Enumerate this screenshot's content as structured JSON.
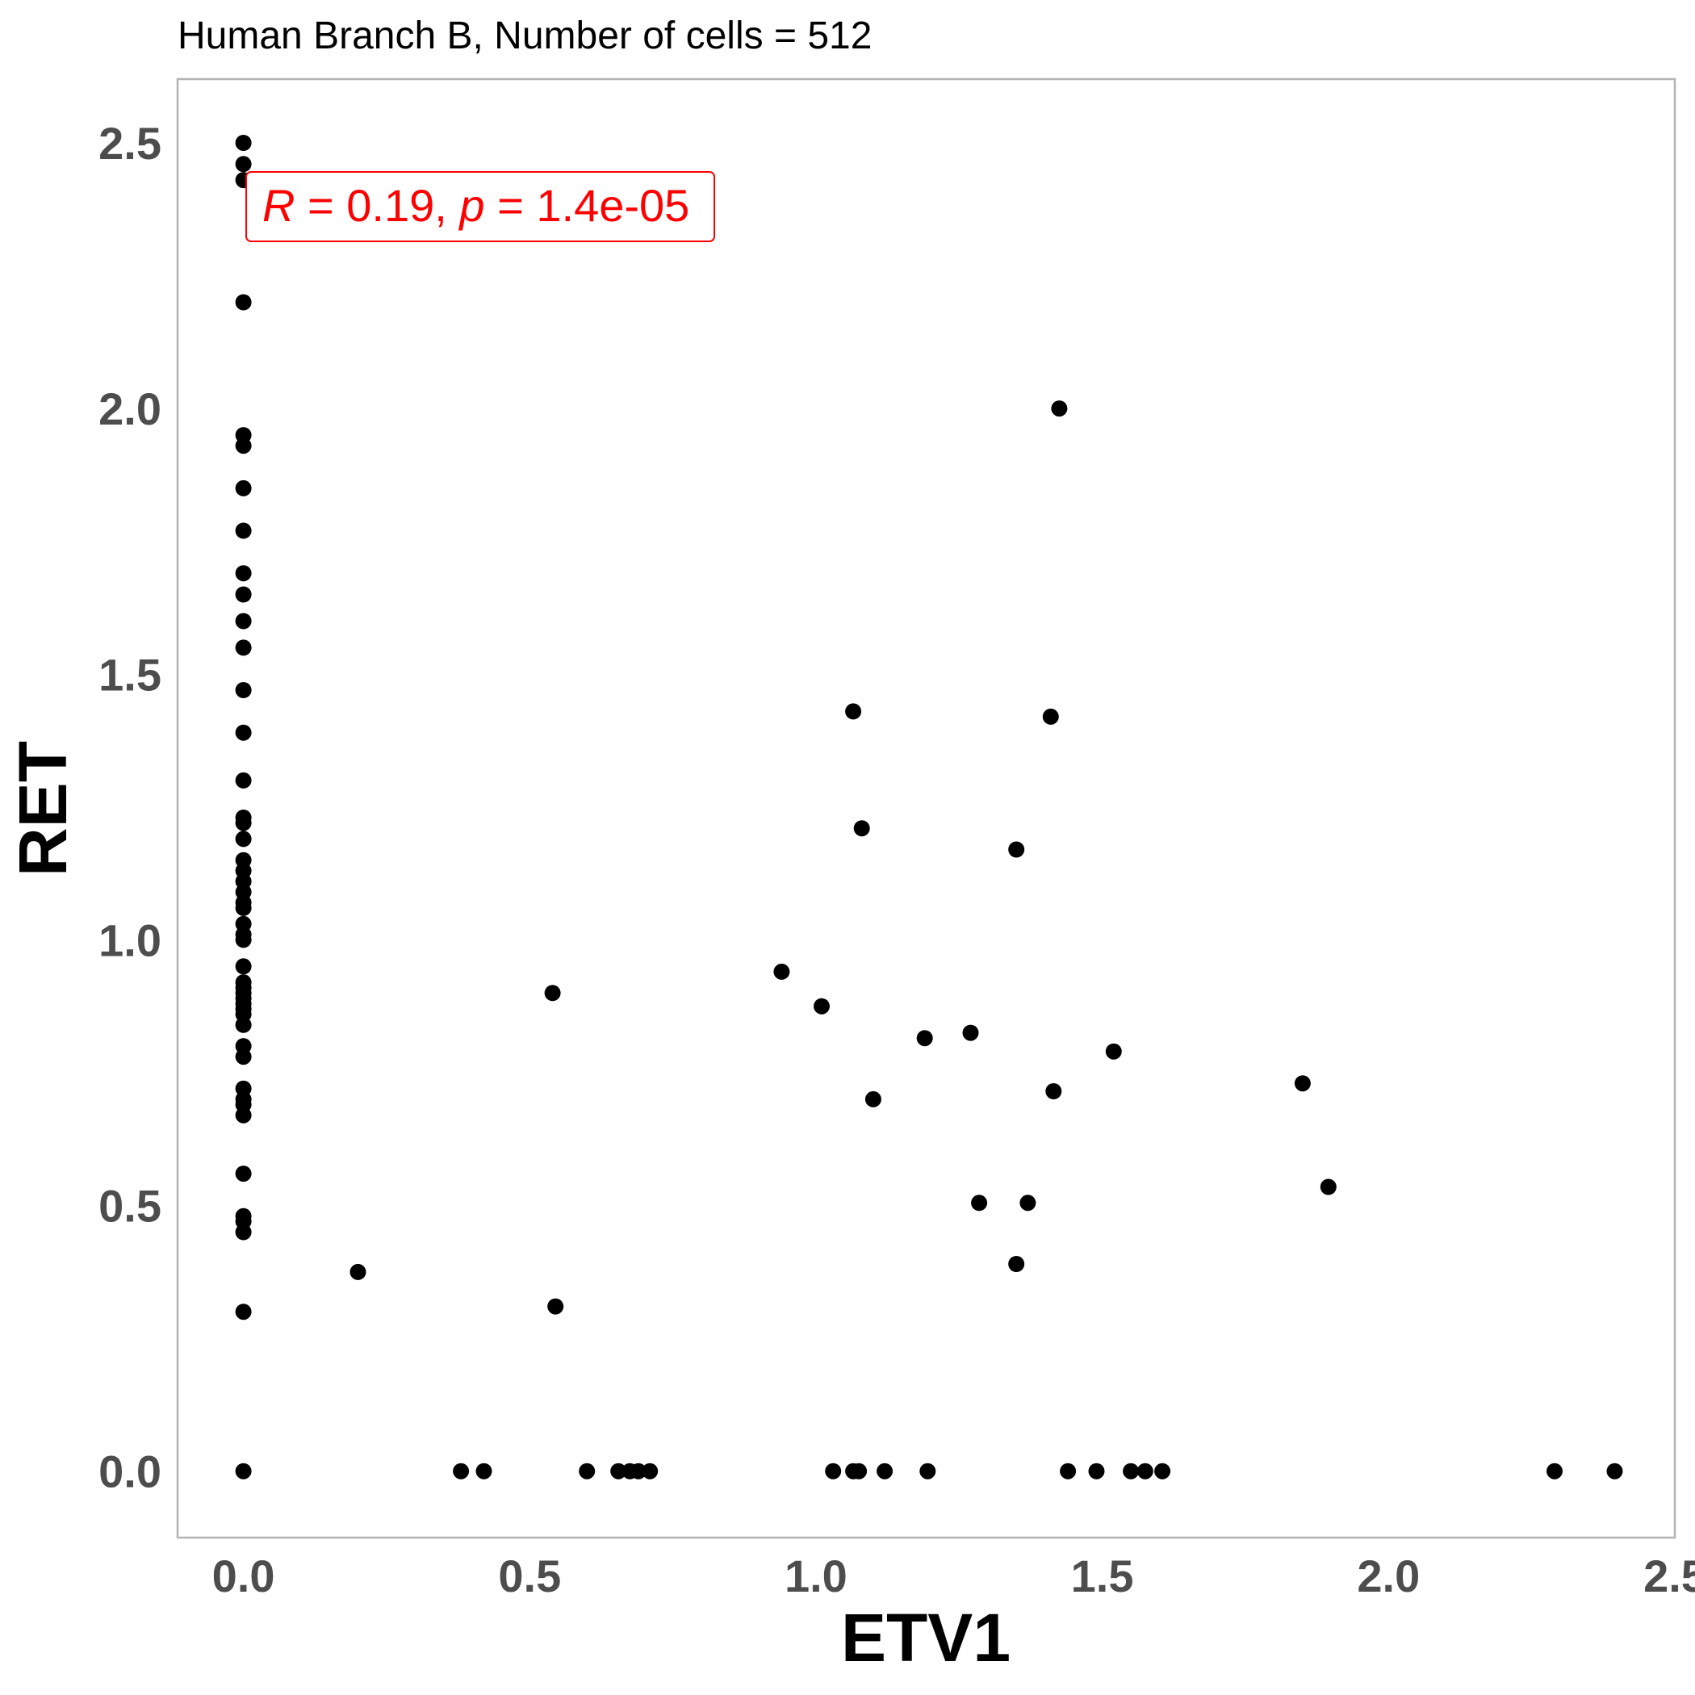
{
  "chart_data": {
    "type": "scatter",
    "title": "Human Branch B, Number of cells = 512",
    "xlabel": "ETV1",
    "ylabel": "RET",
    "xlim": [
      -0.115,
      2.5
    ],
    "ylim": [
      -0.125,
      2.62
    ],
    "xticks": [
      0.0,
      0.5,
      1.0,
      1.5,
      2.0,
      2.5
    ],
    "yticks": [
      0.0,
      0.5,
      1.0,
      1.5,
      2.0,
      2.5
    ],
    "xtick_labels": [
      "0.0",
      "0.5",
      "1.0",
      "1.5",
      "2.0",
      "2.5"
    ],
    "ytick_labels": [
      "0.0",
      "0.5",
      "1.0",
      "1.5",
      "2.0",
      "2.5"
    ],
    "grid": false,
    "annotation": {
      "r_symbol": "R",
      "r_value": "= 0.19,",
      "p_symbol": "p",
      "p_value": "= 1.4e-05",
      "color": "#ff0000"
    },
    "point_color": "#000000",
    "series": [
      {
        "points": [
          [
            0,
            2.5
          ],
          [
            0,
            2.46
          ],
          [
            0,
            2.43
          ],
          [
            0,
            2.2
          ],
          [
            0,
            1.95
          ],
          [
            0,
            1.93
          ],
          [
            0,
            1.85
          ],
          [
            0,
            1.77
          ],
          [
            0,
            1.69
          ],
          [
            0,
            1.65
          ],
          [
            0,
            1.6
          ],
          [
            0,
            1.55
          ],
          [
            0,
            1.47
          ],
          [
            0,
            1.39
          ],
          [
            0,
            1.3
          ],
          [
            0,
            1.23
          ],
          [
            0,
            1.22
          ],
          [
            0,
            1.19
          ],
          [
            0,
            1.15
          ],
          [
            0,
            1.13
          ],
          [
            0,
            1.11
          ],
          [
            0,
            1.09
          ],
          [
            0,
            1.07
          ],
          [
            0,
            1.06
          ],
          [
            0,
            1.03
          ],
          [
            0,
            1.01
          ],
          [
            0,
            1.0
          ],
          [
            0,
            0.95
          ],
          [
            0,
            0.92
          ],
          [
            0,
            0.91
          ],
          [
            0,
            0.9
          ],
          [
            0,
            0.89
          ],
          [
            0,
            0.88
          ],
          [
            0,
            0.87
          ],
          [
            0,
            0.86
          ],
          [
            0,
            0.84
          ],
          [
            0,
            0.8
          ],
          [
            0,
            0.78
          ],
          [
            0,
            0.72
          ],
          [
            0,
            0.7
          ],
          [
            0,
            0.69
          ],
          [
            0,
            0.67
          ],
          [
            0,
            0.56
          ],
          [
            0,
            0.48
          ],
          [
            0,
            0.47
          ],
          [
            0,
            0.45
          ],
          [
            0,
            0.3
          ],
          [
            0,
            0.0
          ],
          [
            0.2,
            0.375
          ],
          [
            0.38,
            0.0
          ],
          [
            0.42,
            0.0
          ],
          [
            0.54,
            0.9
          ],
          [
            0.545,
            0.31
          ],
          [
            0.6,
            0.0
          ],
          [
            0.655,
            0.0
          ],
          [
            0.675,
            0.0
          ],
          [
            0.69,
            0.0
          ],
          [
            0.71,
            0.0
          ],
          [
            0.94,
            0.94
          ],
          [
            1.01,
            0.875
          ],
          [
            1.03,
            0.0
          ],
          [
            1.065,
            1.43
          ],
          [
            1.065,
            0.0
          ],
          [
            1.075,
            0.0
          ],
          [
            1.08,
            1.21
          ],
          [
            1.1,
            0.7
          ],
          [
            1.12,
            0.0
          ],
          [
            1.19,
            0.815
          ],
          [
            1.195,
            0.0
          ],
          [
            1.27,
            0.825
          ],
          [
            1.285,
            0.505
          ],
          [
            1.35,
            1.17
          ],
          [
            1.35,
            0.39
          ],
          [
            1.37,
            0.505
          ],
          [
            1.41,
            1.42
          ],
          [
            1.415,
            0.715
          ],
          [
            1.425,
            2.0
          ],
          [
            1.44,
            0.0
          ],
          [
            1.49,
            0.0
          ],
          [
            1.52,
            0.79
          ],
          [
            1.55,
            0.0
          ],
          [
            1.575,
            0.0
          ],
          [
            1.605,
            0.0
          ],
          [
            1.85,
            0.73
          ],
          [
            1.895,
            0.535
          ],
          [
            2.29,
            0.0
          ],
          [
            2.395,
            0.0
          ]
        ]
      }
    ]
  }
}
